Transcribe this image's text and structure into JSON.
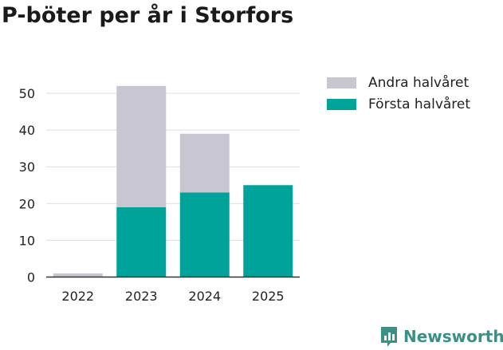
{
  "title": "P-böter per år i Storfors",
  "brand": {
    "name": "Newsworthy",
    "icon": "newsworthy-logo-icon",
    "color": "#3b8f84"
  },
  "chart_data": {
    "type": "bar",
    "stacked": true,
    "categories": [
      "2022",
      "2023",
      "2024",
      "2025"
    ],
    "series": [
      {
        "name": "Första halvåret",
        "color": "#00a39a",
        "values": [
          0,
          19,
          23,
          25
        ]
      },
      {
        "name": "Andra halvåret",
        "color": "#c8c7d1",
        "values": [
          1,
          33,
          16,
          0
        ]
      }
    ],
    "yticks": [
      0,
      10,
      20,
      30,
      40,
      50
    ],
    "ylim": [
      0,
      55
    ],
    "grid": true,
    "legend_position": "right"
  }
}
